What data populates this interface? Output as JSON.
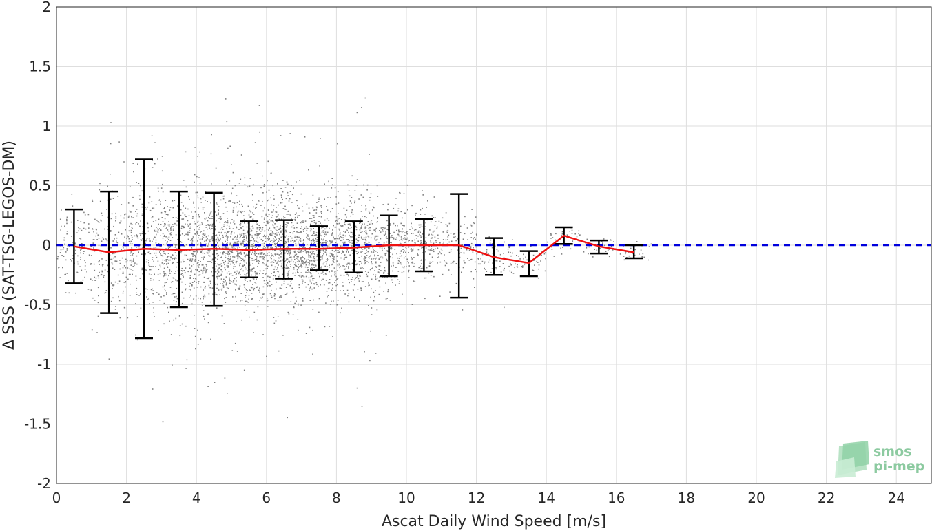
{
  "chart_data": {
    "type": "scatter",
    "xlabel": "Ascat Daily Wind Speed [m/s]",
    "ylabel": "Δ SSS (SAT-TSG-LEGOS-DM)",
    "xlim": [
      0,
      25
    ],
    "ylim": [
      -2,
      2
    ],
    "x_ticks": [
      0,
      2,
      4,
      6,
      8,
      10,
      12,
      14,
      16,
      18,
      20,
      22,
      24
    ],
    "y_ticks": [
      2,
      1.5,
      1,
      0.5,
      0,
      -0.5,
      -1,
      -1.5,
      -2
    ],
    "grid": true,
    "reference_line": {
      "y": 0,
      "color": "#0000dd",
      "style": "dashed"
    },
    "series": [
      {
        "type": "line",
        "color": "#ee1111",
        "x": [
          0.5,
          1.5,
          2.5,
          3.5,
          4.5,
          5.5,
          6.5,
          7.5,
          8.5,
          9.5,
          10.5,
          11.5,
          12.5,
          13.5,
          14.5,
          15.5,
          16.5
        ],
        "y": [
          -0.01,
          -0.06,
          -0.03,
          -0.04,
          -0.03,
          -0.04,
          -0.03,
          -0.03,
          -0.02,
          0.0,
          0.0,
          0.0,
          -0.1,
          -0.15,
          0.08,
          -0.01,
          -0.06
        ]
      },
      {
        "type": "errorbar",
        "color": "#000000",
        "x": [
          0.5,
          1.5,
          2.5,
          3.5,
          4.5,
          5.5,
          6.5,
          7.5,
          8.5,
          9.5,
          10.5,
          11.5,
          12.5,
          13.5,
          14.5,
          15.5,
          16.5
        ],
        "lower": [
          -0.32,
          -0.57,
          -0.78,
          -0.52,
          -0.51,
          -0.27,
          -0.28,
          -0.21,
          -0.23,
          -0.26,
          -0.22,
          -0.44,
          -0.25,
          -0.26,
          0.01,
          -0.07,
          -0.11
        ],
        "upper": [
          0.3,
          0.45,
          0.72,
          0.45,
          0.44,
          0.2,
          0.21,
          0.16,
          0.2,
          0.25,
          0.22,
          0.43,
          0.06,
          -0.05,
          0.15,
          0.04,
          0.0
        ]
      }
    ],
    "scatter_color": "#808080",
    "scatter_cloud": [
      {
        "x": 0.5,
        "sd": 0.16
      },
      {
        "x": 1.5,
        "sd": 0.22
      },
      {
        "x": 2.5,
        "sd": 0.27
      },
      {
        "x": 3.5,
        "sd": 0.26
      },
      {
        "x": 4.5,
        "sd": 0.24
      },
      {
        "x": 5.5,
        "sd": 0.22
      },
      {
        "x": 6.5,
        "sd": 0.22
      },
      {
        "x": 7.5,
        "sd": 0.19
      },
      {
        "x": 8.5,
        "sd": 0.19
      },
      {
        "x": 9.5,
        "sd": 0.18
      },
      {
        "x": 10.5,
        "sd": 0.14
      },
      {
        "x": 11.5,
        "sd": 0.12
      },
      {
        "x": 12.5,
        "sd": 0.07
      },
      {
        "x": 13.5,
        "sd": 0.06
      },
      {
        "x": 14.5,
        "sd": 0.05
      },
      {
        "x": 15.5,
        "sd": 0.04
      },
      {
        "x": 16.5,
        "sd": 0.03
      }
    ]
  },
  "logo": {
    "line1": "smos",
    "line2": "pi-mep"
  }
}
